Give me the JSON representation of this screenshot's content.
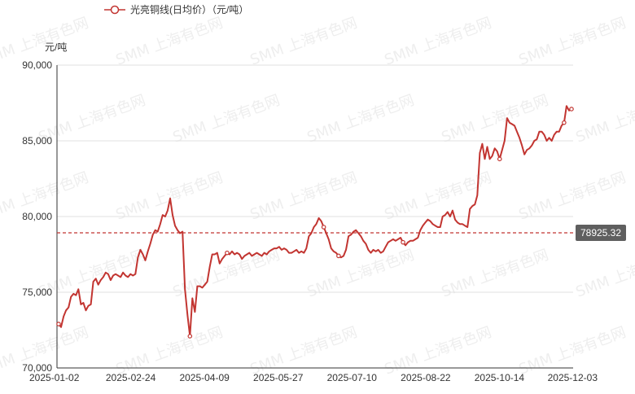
{
  "chart_data": {
    "type": "line",
    "title": "",
    "legend": {
      "position": "top-left",
      "label": "光亮铜线(日均价）（元/吨）"
    },
    "ylabel": "元/吨",
    "xlabel": "",
    "ylim": [
      70000,
      90000
    ],
    "y_ticks": [
      70000,
      75000,
      80000,
      85000,
      90000
    ],
    "y_tick_labels": [
      "70,000",
      "75,000",
      "80,000",
      "85,000",
      "90,000"
    ],
    "x_tick_labels": [
      "2025-01-02",
      "2025-02-24",
      "2025-04-09",
      "2025-05-27",
      "2025-07-10",
      "2025-08-22",
      "2025-10-14",
      "2025-12-03"
    ],
    "grid": {
      "horizontal": true,
      "vertical": false
    },
    "color": "#c23531",
    "average": {
      "value": 78925.32,
      "label": "78925.32",
      "style": "dashed"
    },
    "watermark": "SMM 上海有色网",
    "series": [
      {
        "name": "光亮铜线(日均价）（元/吨）",
        "values": [
          72900,
          72700,
          73400,
          73800,
          74000,
          74700,
          74900,
          74800,
          75200,
          74200,
          74300,
          73800,
          74100,
          74200,
          75700,
          75900,
          75500,
          75800,
          76000,
          76300,
          76200,
          75800,
          76100,
          76200,
          76100,
          76000,
          76300,
          76100,
          76000,
          76200,
          76100,
          76200,
          77300,
          77800,
          77500,
          77100,
          77700,
          78200,
          78800,
          79100,
          79000,
          79500,
          80100,
          80000,
          80400,
          81200,
          80100,
          79400,
          79100,
          78900,
          79000,
          75200,
          73500,
          72100,
          74600,
          73700,
          75400,
          75400,
          75300,
          75500,
          75700,
          76700,
          77500,
          77500,
          77600,
          76900,
          77200,
          77400,
          77600,
          77500,
          77700,
          77500,
          77600,
          77500,
          77200,
          77400,
          77500,
          77600,
          77400,
          77500,
          77600,
          77500,
          77400,
          77600,
          77500,
          77700,
          77800,
          77900,
          77900,
          78000,
          77800,
          77900,
          77800,
          77600,
          77600,
          77700,
          77800,
          77600,
          77700,
          77600,
          77900,
          78700,
          78900,
          79300,
          79500,
          79900,
          79700,
          79300,
          78900,
          78500,
          77900,
          77700,
          77600,
          77400,
          77300,
          77400,
          77800,
          78700,
          78800,
          79000,
          79100,
          78900,
          78700,
          78400,
          78200,
          77800,
          77600,
          77800,
          77700,
          77800,
          77600,
          77700,
          78000,
          78300,
          78400,
          78500,
          78400,
          78500,
          78600,
          78300,
          78100,
          78300,
          78400,
          78400,
          78500,
          78600,
          79100,
          79400,
          79600,
          79800,
          79700,
          79500,
          79400,
          79300,
          79300,
          80000,
          80100,
          80300,
          80000,
          80400,
          79800,
          79600,
          79500,
          79500,
          79400,
          79300,
          80500,
          80700,
          80800,
          81400,
          84200,
          84800,
          83800,
          84600,
          83800,
          84000,
          84500,
          84300,
          83800,
          84400,
          85000,
          86500,
          86200,
          86100,
          86000,
          85600,
          85200,
          84700,
          84100,
          84400,
          84500,
          84700,
          85000,
          85100,
          85600,
          85600,
          85400,
          85000,
          85200,
          85000,
          85400,
          85600,
          85600,
          86000,
          86200,
          87300,
          87000,
          87100
        ]
      }
    ]
  }
}
